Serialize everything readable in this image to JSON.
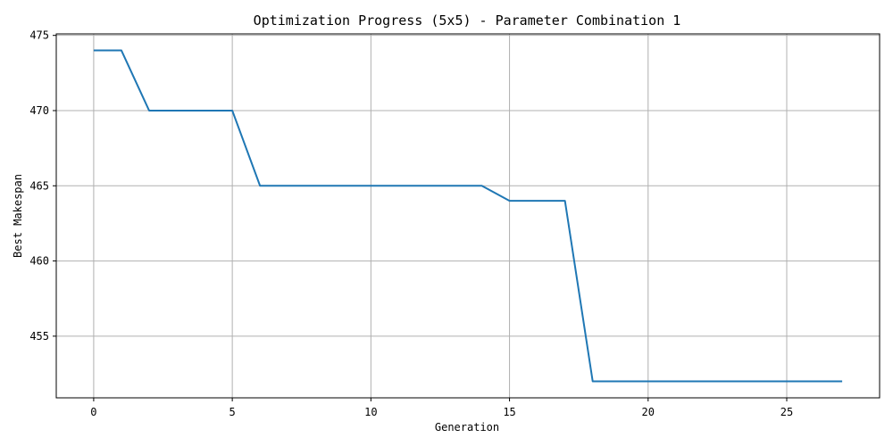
{
  "chart_data": {
    "type": "line",
    "title": "Optimization Progress (5x5) - Parameter Combination 1",
    "xlabel": "Generation",
    "ylabel": "Best Makespan",
    "xlim": [
      -1.35,
      28.35
    ],
    "ylim": [
      450.9,
      475.1
    ],
    "xticks": [
      0,
      5,
      10,
      15,
      20,
      25
    ],
    "xtick_labels": [
      "0",
      "5",
      "10",
      "15",
      "20",
      "25"
    ],
    "yticks": [
      455,
      460,
      465,
      470,
      475
    ],
    "ytick_labels": [
      "455",
      "460",
      "465",
      "470",
      "475"
    ],
    "grid": true,
    "legend": "none",
    "series": [
      {
        "color": "#1f77b4",
        "x": [
          0,
          1,
          2,
          3,
          4,
          5,
          6,
          7,
          8,
          9,
          10,
          11,
          12,
          13,
          14,
          15,
          16,
          17,
          18,
          19,
          20,
          21,
          22,
          23,
          24,
          25,
          26,
          27
        ],
        "y": [
          474,
          474,
          470,
          470,
          470,
          470,
          465,
          465,
          465,
          465,
          465,
          465,
          465,
          465,
          465,
          464,
          464,
          464,
          452,
          452,
          452,
          452,
          452,
          452,
          452,
          452,
          452,
          452
        ]
      }
    ]
  }
}
